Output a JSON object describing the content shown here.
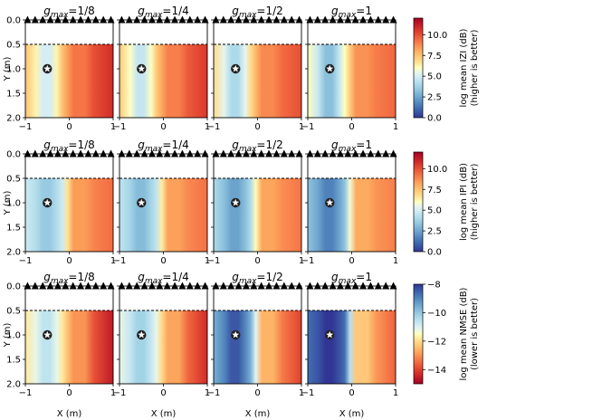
{
  "chart_data": {
    "type": "heatmap",
    "layout": {
      "rows": 3,
      "cols": 4
    },
    "column_titles": [
      "g_max=1/8",
      "g_max=1/4",
      "g_max=1/2",
      "g_max=1"
    ],
    "title_parts": {
      "base": "g",
      "sub": "max",
      "values": [
        "=1/8",
        "=1/4",
        "=1/2",
        "=1"
      ]
    },
    "x_axis": {
      "label": "X (m)",
      "range": [
        -1,
        1
      ],
      "ticks": [
        -1,
        0,
        1
      ],
      "tick_labels": [
        "−1",
        "0",
        "1"
      ]
    },
    "y_axis": {
      "label": "Y (m)",
      "range": [
        0,
        2
      ],
      "inverted": true,
      "ticks": [
        0.0,
        0.5,
        1.0,
        1.5,
        2.0
      ],
      "tick_labels": [
        "0.0",
        "0.5",
        "1.0",
        "1.5",
        "2.0"
      ]
    },
    "speaker_array": {
      "y": 0.0,
      "count": 12,
      "x_start": -0.95,
      "x_end": 0.95,
      "marker": "triangle"
    },
    "region_boundary_y": 0.5,
    "target": {
      "x": -0.5,
      "y": 1.0,
      "marker": "star"
    },
    "rows": [
      {
        "metric": "log mean |Z|",
        "colorbar_label_1": "log mean IZI (dB)",
        "colorbar_label_2": "(higher is better)",
        "colormap": "RdYlBu_r",
        "range": [
          0,
          12
        ],
        "ticks": [
          0,
          2.5,
          5,
          7.5,
          10
        ],
        "tick_labels": [
          "0.0",
          "2.5",
          "5.0",
          "7.5",
          "10.0"
        ],
        "panels": [
          {
            "gmax": "1/8",
            "left_level": 7.5,
            "blue_level": 5.0,
            "right_level": 9.2,
            "red_level": 10.8
          },
          {
            "gmax": "1/4",
            "left_level": 7.3,
            "blue_level": 4.6,
            "right_level": 9.0,
            "red_level": 10.5
          },
          {
            "gmax": "1/2",
            "left_level": 6.8,
            "blue_level": 4.0,
            "right_level": 8.8,
            "red_level": 10.0
          },
          {
            "gmax": "1",
            "left_level": 6.0,
            "blue_level": 3.2,
            "right_level": 8.6,
            "red_level": 9.5
          }
        ]
      },
      {
        "metric": "log mean |P|",
        "colorbar_label_1": "log mean IPI (dB)",
        "colorbar_label_2": "(higher is better)",
        "colormap": "RdYlBu_r",
        "range": [
          0,
          12
        ],
        "ticks": [
          0,
          2.5,
          5,
          7.5,
          10
        ],
        "tick_labels": [
          "0.0",
          "2.5",
          "5.0",
          "7.5",
          "10.0"
        ],
        "panels": [
          {
            "gmax": "1/8",
            "left_level": 4.8,
            "blue_level": 3.5,
            "right_level": 8.4,
            "red_level": 9.4
          },
          {
            "gmax": "1/4",
            "left_level": 4.5,
            "blue_level": 3.1,
            "right_level": 8.3,
            "red_level": 9.3
          },
          {
            "gmax": "1/2",
            "left_level": 4.0,
            "blue_level": 2.4,
            "right_level": 8.2,
            "red_level": 9.2
          },
          {
            "gmax": "1",
            "left_level": 3.3,
            "blue_level": 1.6,
            "right_level": 8.1,
            "red_level": 9.0
          }
        ]
      },
      {
        "metric": "log mean NMSE",
        "colorbar_label_1": "log mean NMSE (dB)",
        "colorbar_label_2": "(lower is better)",
        "colormap": "RdYlBu",
        "range": [
          -15,
          -8
        ],
        "ticks": [
          -14,
          -12,
          -10,
          -8
        ],
        "tick_labels": [
          "−14",
          "−12",
          "−10",
          "−8"
        ],
        "panels": [
          {
            "gmax": "1/8",
            "left_level": -11.8,
            "blue_level": -10.6,
            "right_level": -13.0,
            "red_level": -14.6
          },
          {
            "gmax": "1/4",
            "left_level": -11.2,
            "blue_level": -10.2,
            "right_level": -12.8,
            "red_level": -14.3
          },
          {
            "gmax": "1/2",
            "left_level": -9.6,
            "blue_level": -8.4,
            "right_level": -12.6,
            "red_level": -14.0
          },
          {
            "gmax": "1",
            "left_level": -8.7,
            "blue_level": -8.0,
            "right_level": -12.3,
            "red_level": -13.6
          }
        ]
      }
    ]
  }
}
